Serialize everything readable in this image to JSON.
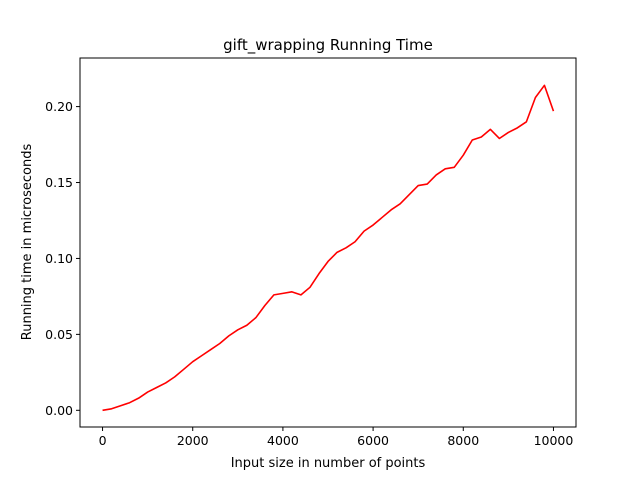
{
  "chart_data": {
    "type": "line",
    "title": "gift_wrapping Running Time",
    "xlabel": "Input size in number of points",
    "ylabel": "Running time in microseconds",
    "xlim": [
      -500,
      10500
    ],
    "ylim": [
      -0.011,
      0.232
    ],
    "xticks": [
      0,
      2000,
      4000,
      6000,
      8000,
      10000
    ],
    "xtick_labels": [
      "0",
      "2000",
      "4000",
      "6000",
      "8000",
      "10000"
    ],
    "yticks": [
      0.0,
      0.05,
      0.1,
      0.15,
      0.2
    ],
    "ytick_labels": [
      "0.00",
      "0.05",
      "0.10",
      "0.15",
      "0.20"
    ],
    "grid": false,
    "series": [
      {
        "color": "#ff0000",
        "x": [
          0,
          200,
          400,
          600,
          800,
          1000,
          1200,
          1400,
          1600,
          1800,
          2000,
          2200,
          2400,
          2600,
          2800,
          3000,
          3200,
          3400,
          3600,
          3800,
          4000,
          4200,
          4400,
          4600,
          4800,
          5000,
          5200,
          5400,
          5600,
          5800,
          6000,
          6200,
          6400,
          6600,
          6800,
          7000,
          7200,
          7400,
          7600,
          7800,
          8000,
          8200,
          8400,
          8600,
          8800,
          9000,
          9200,
          9400,
          9600,
          9800,
          10000
        ],
        "y": [
          0.0,
          0.001,
          0.003,
          0.005,
          0.008,
          0.012,
          0.015,
          0.018,
          0.022,
          0.027,
          0.032,
          0.036,
          0.04,
          0.044,
          0.049,
          0.053,
          0.056,
          0.061,
          0.069,
          0.076,
          0.077,
          0.078,
          0.076,
          0.081,
          0.09,
          0.098,
          0.104,
          0.107,
          0.111,
          0.118,
          0.122,
          0.127,
          0.132,
          0.136,
          0.142,
          0.148,
          0.149,
          0.155,
          0.159,
          0.16,
          0.168,
          0.178,
          0.18,
          0.185,
          0.179,
          0.183,
          0.186,
          0.19,
          0.206,
          0.214,
          0.197
        ]
      }
    ]
  }
}
